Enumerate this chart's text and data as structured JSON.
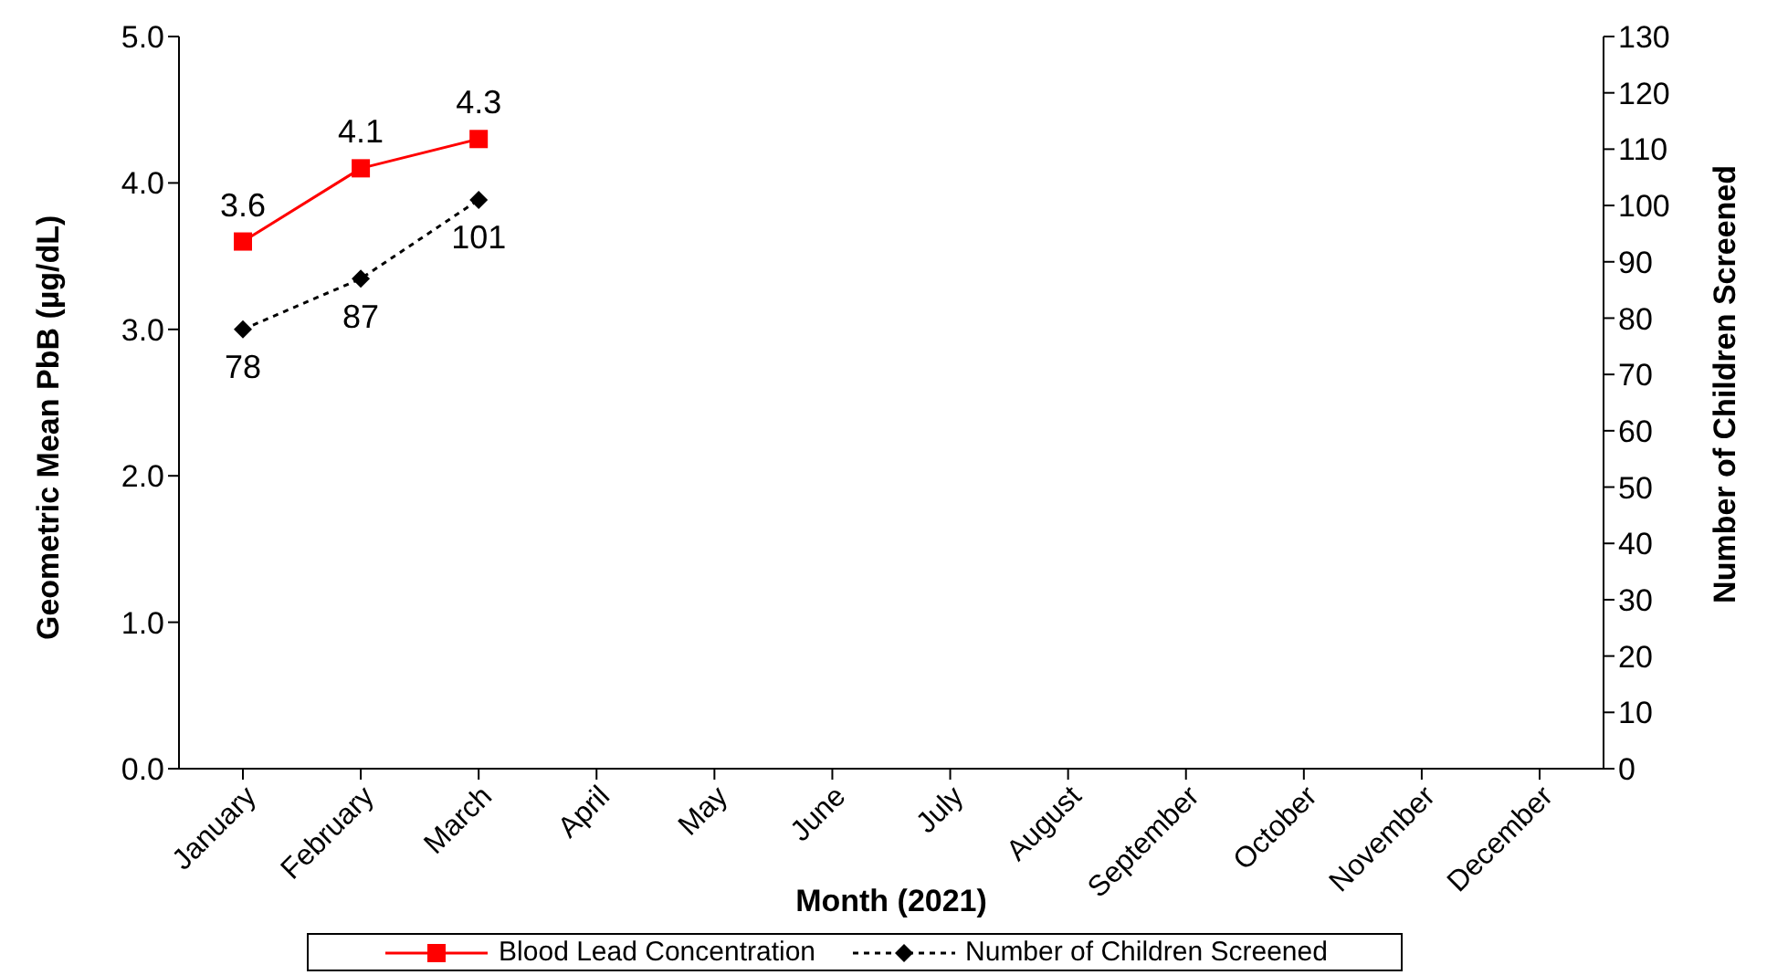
{
  "chart_data": {
    "type": "line",
    "xlabel": "Month (2021)",
    "ylabel": "Geometric Mean PbB (µg/dL)",
    "y2label": "Number of Children Screened",
    "categories": [
      "January",
      "February",
      "March",
      "April",
      "May",
      "June",
      "July",
      "August",
      "September",
      "October",
      "November",
      "December"
    ],
    "series": [
      {
        "name": "Blood Lead Concentration",
        "color": "#ff0000",
        "marker": "square",
        "line_style": "solid",
        "values": [
          3.6,
          4.1,
          4.3,
          null,
          null,
          null,
          null,
          null,
          null,
          null,
          null,
          null
        ]
      },
      {
        "name": "Number of Children Screened",
        "color": "#000000",
        "marker": "diamond",
        "line_style": "dotted",
        "axis": "y2",
        "values": [
          78,
          87,
          101,
          null,
          null,
          null,
          null,
          null,
          null,
          null,
          null,
          null
        ]
      }
    ],
    "ylim": [
      0,
      5
    ],
    "yticks": [
      {
        "value": 0,
        "label": "0.0"
      },
      {
        "value": 1,
        "label": "1.0"
      },
      {
        "value": 2,
        "label": "2.0"
      },
      {
        "value": 3,
        "label": "3.0"
      },
      {
        "value": 4,
        "label": "4.0"
      },
      {
        "value": 5,
        "label": "5.0"
      }
    ],
    "y2lim": [
      0,
      130
    ],
    "y2ticks": [
      0,
      10,
      20,
      30,
      40,
      50,
      60,
      70,
      80,
      90,
      100,
      110,
      120,
      130
    ],
    "data_labels": true,
    "grid": false,
    "legend": "bottom"
  }
}
